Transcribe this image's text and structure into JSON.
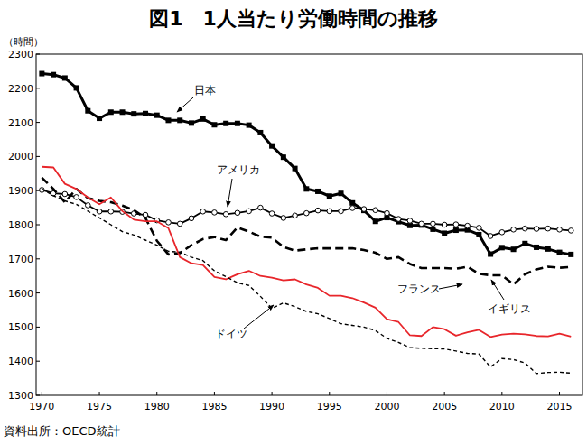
{
  "chart_data": {
    "type": "line",
    "title": "図1　1人当たり労働時間の推移",
    "y_label": "（時間）",
    "source": "資料出所：OECD統計",
    "x": [
      1970,
      1971,
      1972,
      1973,
      1974,
      1975,
      1976,
      1977,
      1978,
      1979,
      1980,
      1981,
      1982,
      1983,
      1984,
      1985,
      1986,
      1987,
      1988,
      1989,
      1990,
      1991,
      1992,
      1993,
      1994,
      1995,
      1996,
      1997,
      1998,
      1999,
      2000,
      2001,
      2002,
      2003,
      2004,
      2005,
      2006,
      2007,
      2008,
      2009,
      2010,
      2011,
      2012,
      2013,
      2014,
      2015,
      2016
    ],
    "xlim": [
      1969.5,
      2017
    ],
    "xticks": [
      1970,
      1975,
      1980,
      1985,
      1990,
      1995,
      2000,
      2005,
      2010,
      2015
    ],
    "ylim": [
      1300,
      2300
    ],
    "yticks": [
      1300,
      1400,
      1500,
      1600,
      1700,
      1800,
      1900,
      2000,
      2100,
      2200,
      2300
    ],
    "grid": false,
    "series": [
      {
        "name": "日本",
        "color": "#000000",
        "marker": "square",
        "line_style": "solid",
        "values": [
          2243,
          2240,
          2230,
          2201,
          2134,
          2112,
          2130,
          2130,
          2125,
          2126,
          2121,
          2106,
          2106,
          2098,
          2110,
          2093,
          2097,
          2097,
          2092,
          2070,
          2031,
          1998,
          1965,
          1905,
          1898,
          1884,
          1892,
          1864,
          1842,
          1810,
          1821,
          1809,
          1798,
          1799,
          1787,
          1775,
          1784,
          1785,
          1771,
          1714,
          1733,
          1728,
          1745,
          1734,
          1729,
          1719,
          1713
        ]
      },
      {
        "name": "アメリカ",
        "color": "#000000",
        "marker": "open-circle",
        "line_style": "solid",
        "values": [
          1902,
          1892,
          1890,
          1881,
          1857,
          1839,
          1839,
          1838,
          1833,
          1829,
          1813,
          1807,
          1803,
          1819,
          1839,
          1836,
          1831,
          1835,
          1840,
          1850,
          1833,
          1820,
          1827,
          1834,
          1842,
          1840,
          1840,
          1849,
          1846,
          1843,
          1834,
          1817,
          1812,
          1803,
          1803,
          1800,
          1801,
          1797,
          1791,
          1767,
          1778,
          1786,
          1789,
          1788,
          1789,
          1786,
          1783
        ]
      },
      {
        "name": "イギリス",
        "color": "#000000",
        "marker": "none",
        "line_style": "dashed",
        "values": [
          1938,
          1905,
          1866,
          1905,
          1878,
          1870,
          1866,
          1856,
          1843,
          1820,
          1753,
          1713,
          1717,
          1740,
          1758,
          1764,
          1755,
          1792,
          1780,
          1765,
          1762,
          1735,
          1724,
          1728,
          1731,
          1731,
          1731,
          1731,
          1726,
          1718,
          1700,
          1705,
          1685,
          1673,
          1673,
          1673,
          1671,
          1677,
          1656,
          1652,
          1652,
          1625,
          1655,
          1669,
          1677,
          1674,
          1676
        ]
      },
      {
        "name": "フランス",
        "color": "#e8262b",
        "marker": "none",
        "line_style": "solid",
        "values": [
          1970,
          1968,
          1920,
          1905,
          1880,
          1860,
          1880,
          1840,
          1815,
          1810,
          1810,
          1790,
          1705,
          1687,
          1682,
          1647,
          1640,
          1655,
          1665,
          1650,
          1645,
          1637,
          1640,
          1625,
          1615,
          1592,
          1592,
          1585,
          1572,
          1557,
          1523,
          1515,
          1476,
          1474,
          1500,
          1494,
          1475,
          1485,
          1492,
          1471,
          1478,
          1481,
          1479,
          1474,
          1473,
          1481,
          1472
        ]
      },
      {
        "name": "ドイツ",
        "color": "#000000",
        "marker": "none",
        "line_style": "dotted",
        "values": [
          1905,
          1885,
          1870,
          1860,
          1840,
          1820,
          1800,
          1780,
          1770,
          1755,
          1740,
          1722,
          1720,
          1705,
          1695,
          1665,
          1648,
          1630,
          1622,
          1590,
          1555,
          1571,
          1560,
          1546,
          1539,
          1525,
          1510,
          1505,
          1500,
          1490,
          1467,
          1455,
          1440,
          1438,
          1437,
          1436,
          1430,
          1423,
          1421,
          1383,
          1408,
          1405,
          1395,
          1364,
          1367,
          1368,
          1365
        ]
      }
    ]
  }
}
